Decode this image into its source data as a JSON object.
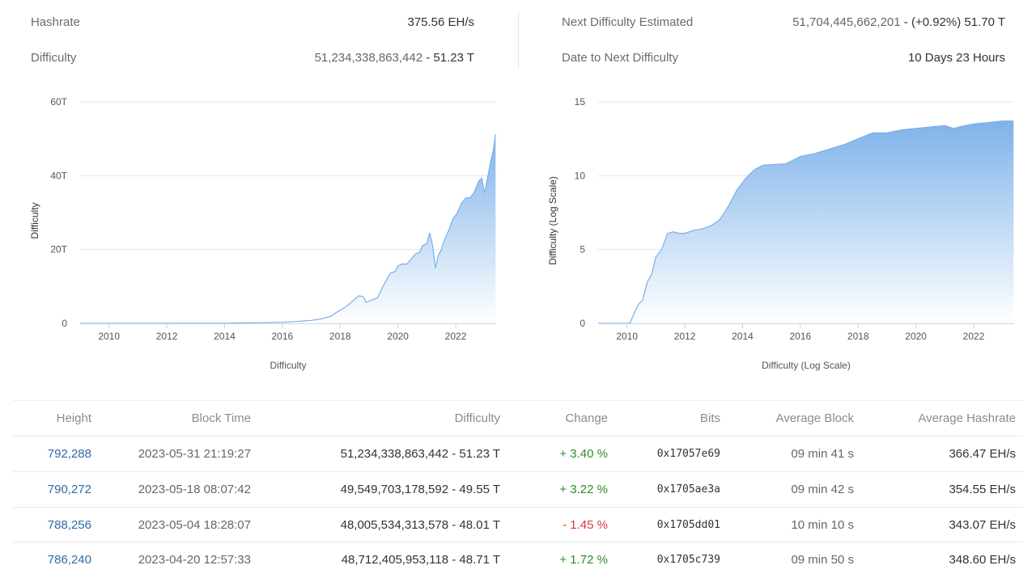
{
  "stats": {
    "hashrate_label": "Hashrate",
    "hashrate_value": "375.56 EH/s",
    "difficulty_label": "Difficulty",
    "difficulty_value_main": "51,234,338,863,442",
    "difficulty_value_suffix": " - 51.23 T",
    "next_label": "Next Difficulty Estimated",
    "next_value_main": "51,704,445,662,201",
    "next_value_suffix": " - (+0.92%) 51.70 T",
    "date_label": "Date to Next Difficulty",
    "date_value": "10 Days 23 Hours"
  },
  "colors": {
    "accent_link": "#2f6aa6",
    "area_top": "#7fb2ea",
    "area_bottom": "#ffffff",
    "line": "#7ab0e8",
    "positive": "#2e8b2e",
    "negative": "#d9363e"
  },
  "chart_data": [
    {
      "type": "area",
      "title": "",
      "xlabel": "Difficulty",
      "ylabel": "Difficulty",
      "xlim": [
        2009.0,
        2023.4
      ],
      "ylim": [
        0,
        60
      ],
      "yticks": [
        0,
        20,
        40,
        60
      ],
      "ytick_labels": [
        "0",
        "20T",
        "40T",
        "60T"
      ],
      "xticks": [
        2010,
        2012,
        2014,
        2016,
        2018,
        2020,
        2022
      ],
      "xtick_labels": [
        "2010",
        "2012",
        "2014",
        "2016",
        "2018",
        "2020",
        "2022"
      ],
      "grid": true,
      "x": [
        2009.0,
        2014.0,
        2016.0,
        2016.5,
        2017.0,
        2017.4,
        2017.7,
        2017.9,
        2018.1,
        2018.3,
        2018.5,
        2018.65,
        2018.8,
        2018.9,
        2019.1,
        2019.3,
        2019.45,
        2019.6,
        2019.75,
        2019.9,
        2020.0,
        2020.15,
        2020.3,
        2020.45,
        2020.6,
        2020.75,
        2020.85,
        2021.0,
        2021.1,
        2021.2,
        2021.3,
        2021.4,
        2021.5,
        2021.6,
        2021.75,
        2021.9,
        2022.05,
        2022.2,
        2022.35,
        2022.5,
        2022.65,
        2022.8,
        2022.9,
        2023.0,
        2023.1,
        2023.2,
        2023.3,
        2023.38
      ],
      "values": [
        0,
        0.05,
        0.3,
        0.5,
        0.8,
        1.3,
        2.0,
        3.1,
        4.0,
        5.1,
        6.5,
        7.5,
        7.2,
        5.7,
        6.3,
        7.0,
        9.5,
        11.8,
        13.7,
        14.0,
        15.6,
        16.1,
        16.0,
        17.3,
        18.8,
        19.2,
        21.0,
        21.6,
        24.5,
        21.1,
        15.0,
        18.5,
        19.9,
        22.4,
        25.0,
        28.3,
        29.8,
        32.5,
        34.0,
        34.0,
        35.6,
        38.6,
        39.3,
        35.3,
        39.3,
        43.6,
        46.8,
        51.2
      ]
    },
    {
      "type": "area",
      "title": "",
      "xlabel": "Difficulty (Log Scale)",
      "ylabel": "Difficulty (Log Scale)",
      "xlim": [
        2009.0,
        2023.4
      ],
      "ylim": [
        0,
        15
      ],
      "yticks": [
        0,
        5,
        10,
        15
      ],
      "ytick_labels": [
        "0",
        "5",
        "10",
        "15"
      ],
      "xticks": [
        2010,
        2012,
        2014,
        2016,
        2018,
        2020,
        2022
      ],
      "xtick_labels": [
        "2010",
        "2012",
        "2014",
        "2016",
        "2018",
        "2020",
        "2022"
      ],
      "grid": true,
      "x": [
        2009.0,
        2010.1,
        2010.25,
        2010.4,
        2010.55,
        2010.7,
        2010.85,
        2011.0,
        2011.2,
        2011.4,
        2011.6,
        2011.8,
        2012.0,
        2012.3,
        2012.6,
        2012.9,
        2013.2,
        2013.5,
        2013.8,
        2014.1,
        2014.4,
        2014.7,
        2015.0,
        2015.5,
        2016.0,
        2016.5,
        2017.0,
        2017.5,
        2018.0,
        2018.5,
        2019.0,
        2019.5,
        2020.0,
        2020.5,
        2021.0,
        2021.3,
        2021.6,
        2022.0,
        2022.5,
        2023.0,
        2023.38
      ],
      "values": [
        0,
        0,
        0.7,
        1.3,
        1.6,
        2.8,
        3.3,
        4.5,
        5.0,
        6.1,
        6.2,
        6.1,
        6.1,
        6.3,
        6.4,
        6.6,
        7.0,
        7.9,
        9.0,
        9.8,
        10.4,
        10.7,
        10.75,
        10.8,
        11.3,
        11.5,
        11.8,
        12.1,
        12.5,
        12.9,
        12.9,
        13.1,
        13.2,
        13.3,
        13.4,
        13.2,
        13.35,
        13.5,
        13.6,
        13.7,
        13.7
      ]
    }
  ],
  "table": {
    "headers": {
      "height": "Height",
      "time": "Block Time",
      "difficulty": "Difficulty",
      "change": "Change",
      "bits": "Bits",
      "avg_block": "Average Block",
      "avg_hash": "Average Hashrate"
    },
    "rows": [
      {
        "height": "792,288",
        "time": "2023-05-31 21:19:27",
        "difficulty": "51,234,338,863,442 - 51.23 T",
        "change": "+ 3.40 %",
        "direction": "up",
        "bits": "0x17057e69",
        "avg_block": "09 min 41 s",
        "avg_hash": "366.47 EH/s"
      },
      {
        "height": "790,272",
        "time": "2023-05-18 08:07:42",
        "difficulty": "49,549,703,178,592 - 49.55 T",
        "change": "+ 3.22 %",
        "direction": "up",
        "bits": "0x1705ae3a",
        "avg_block": "09 min 42 s",
        "avg_hash": "354.55 EH/s"
      },
      {
        "height": "788,256",
        "time": "2023-05-04 18:28:07",
        "difficulty": "48,005,534,313,578 - 48.01 T",
        "change": "- 1.45 %",
        "direction": "down",
        "bits": "0x1705dd01",
        "avg_block": "10 min 10 s",
        "avg_hash": "343.07 EH/s"
      },
      {
        "height": "786,240",
        "time": "2023-04-20 12:57:33",
        "difficulty": "48,712,405,953,118 - 48.71 T",
        "change": "+ 1.72 %",
        "direction": "up",
        "bits": "0x1705c739",
        "avg_block": "09 min 50 s",
        "avg_hash": "348.60 EH/s"
      }
    ]
  }
}
